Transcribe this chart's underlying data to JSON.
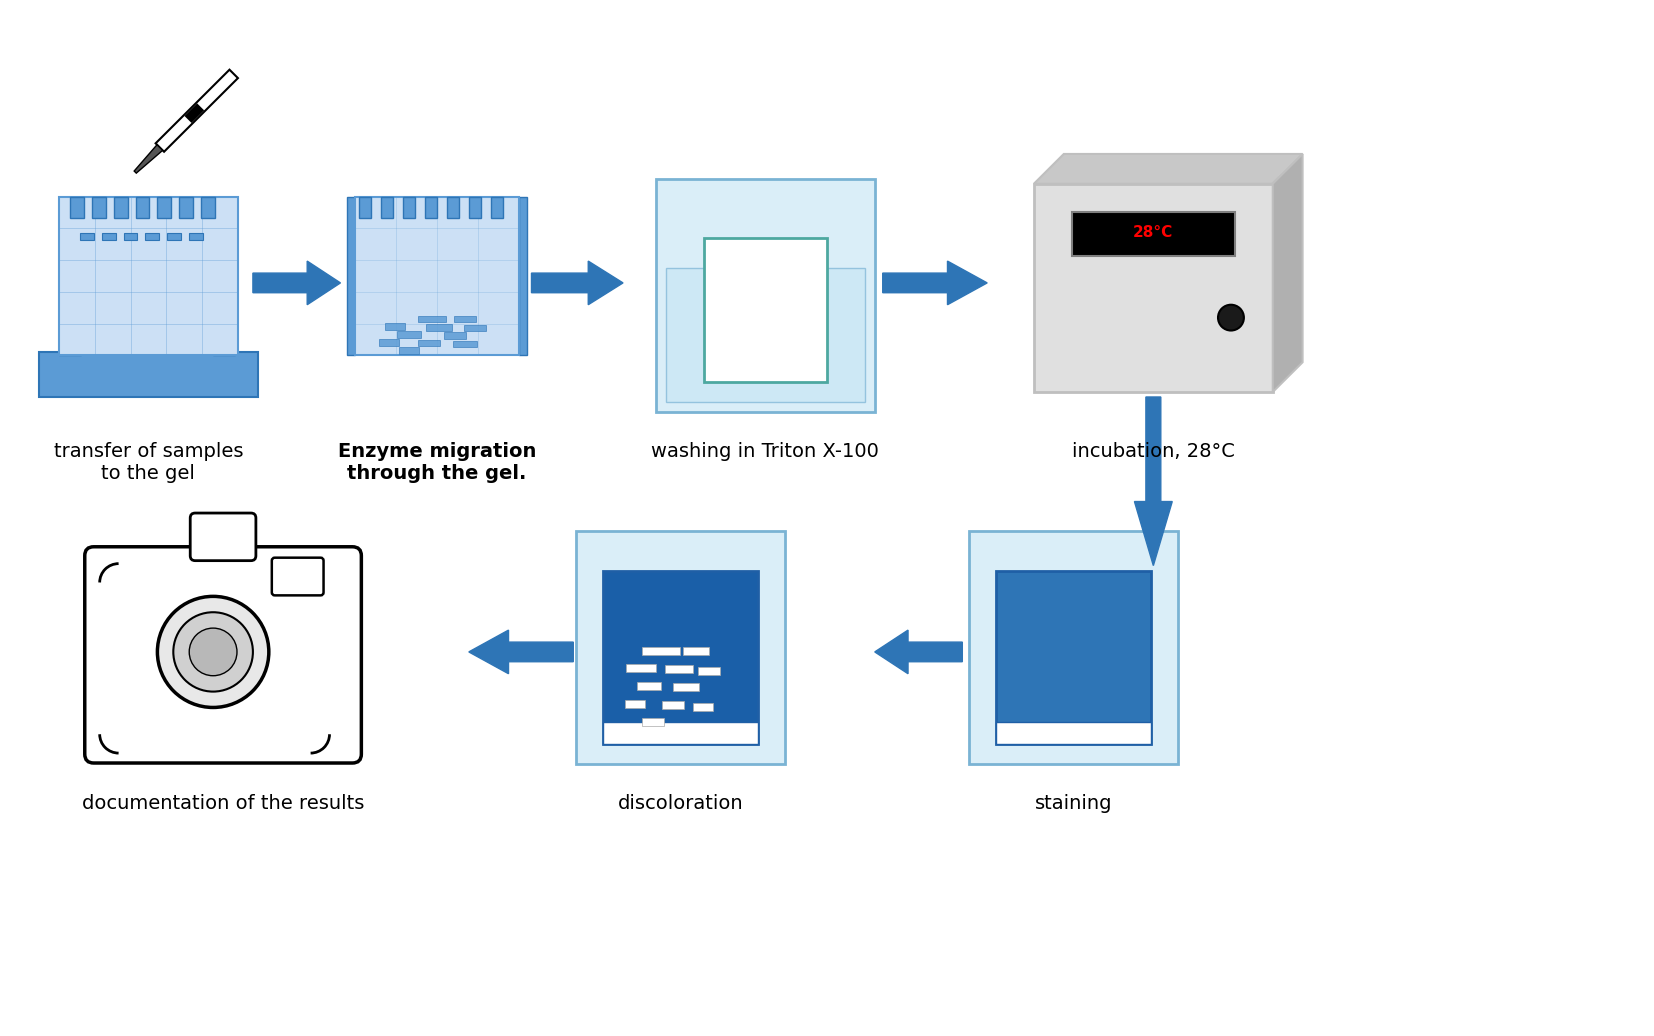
{
  "fig_width": 16.54,
  "fig_height": 10.36,
  "bg_color": "#ffffff",
  "blue_light": "#cce0f5",
  "blue_mid": "#5b9bd5",
  "blue_dark": "#2e75b6",
  "blue_darker": "#1f5fa6",
  "gray_light": "#d9d9d9",
  "gray_mid": "#bfbfbf",
  "gray_dark": "#7f7f7f",
  "labels": {
    "step1": "transfer of samples\nto the gel",
    "step2": "Enzyme migration\nthrough the gel.",
    "step3": "washing in Triton X-100",
    "step4": "incubation, 28°C",
    "step5": "discoloration",
    "step6": "staining",
    "step7": "documentation of the results"
  },
  "label_fontsize": 14,
  "arrow_color": "#2e75b6"
}
